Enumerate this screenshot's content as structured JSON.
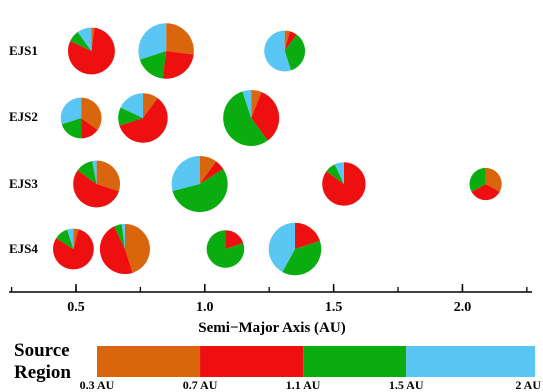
{
  "chart_data": {
    "type": "pie",
    "xlabel": "Semi−Major Axis (AU)",
    "xlim": [
      0.24,
      2.27
    ],
    "xticks": [
      "0.5",
      "1.0",
      "1.5",
      "2.0"
    ],
    "xtick_values": [
      0.5,
      1.0,
      1.5,
      2.0
    ],
    "source_colors": [
      "#d9660c",
      "#ee0f10",
      "#0aad10",
      "#5ac6f4"
    ],
    "rows": [
      {
        "label": "EJS1",
        "planets": [
          {
            "a": 0.56,
            "mass": 0.7,
            "fractions": [
              0.02,
              0.8,
              0.08,
              0.1
            ]
          },
          {
            "a": 0.85,
            "mass": 0.98,
            "fractions": [
              0.27,
              0.25,
              0.18,
              0.3
            ]
          },
          {
            "a": 1.31,
            "mass": 0.53,
            "fractions": [
              0.04,
              0.06,
              0.35,
              0.55
            ]
          }
        ]
      },
      {
        "label": "EJS2",
        "planets": [
          {
            "a": 0.52,
            "mass": 0.53,
            "fractions": [
              0.35,
              0.15,
              0.2,
              0.3
            ]
          },
          {
            "a": 0.76,
            "mass": 0.78,
            "fractions": [
              0.1,
              0.6,
              0.12,
              0.18
            ]
          },
          {
            "a": 1.18,
            "mass": 1.0,
            "fractions": [
              0.06,
              0.34,
              0.55,
              0.05
            ]
          }
        ]
      },
      {
        "label": "EJS3",
        "planets": [
          {
            "a": 0.58,
            "mass": 0.7,
            "fractions": [
              0.3,
              0.55,
              0.12,
              0.03
            ]
          },
          {
            "a": 0.98,
            "mass": 1.0,
            "fractions": [
              0.1,
              0.06,
              0.55,
              0.29
            ]
          },
          {
            "a": 1.54,
            "mass": 0.6,
            "fractions": [
              0.0,
              0.85,
              0.08,
              0.07
            ]
          },
          {
            "a": 2.09,
            "mass": 0.33,
            "fractions": [
              0.33,
              0.34,
              0.33,
              0.0
            ]
          }
        ]
      },
      {
        "label": "EJS4",
        "planets": [
          {
            "a": 0.49,
            "mass": 0.53,
            "fractions": [
              0.04,
              0.8,
              0.11,
              0.05
            ]
          },
          {
            "a": 0.69,
            "mass": 0.8,
            "fractions": [
              0.45,
              0.48,
              0.05,
              0.02
            ]
          },
          {
            "a": 1.08,
            "mass": 0.45,
            "fractions": [
              0.0,
              0.2,
              0.8,
              0.0
            ]
          },
          {
            "a": 1.35,
            "mass": 0.88,
            "fractions": [
              0.0,
              0.2,
              0.38,
              0.42
            ]
          }
        ]
      }
    ],
    "legend": {
      "title": [
        "Source",
        "Region"
      ],
      "ticks": [
        "0.3 AU",
        "0.7 AU",
        "1.1 AU",
        "1.5 AU",
        "2 AU"
      ],
      "tick_values": [
        0.3,
        0.7,
        1.1,
        1.5,
        2.0
      ],
      "colors": [
        "#d9660c",
        "#ee0f10",
        "#0aad10",
        "#5ac6f4"
      ]
    }
  }
}
